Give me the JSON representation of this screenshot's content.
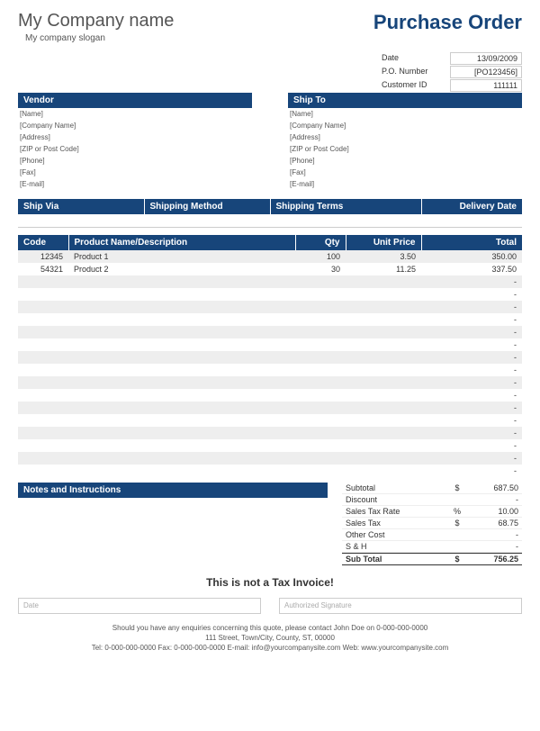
{
  "header": {
    "company": "My Company name",
    "slogan": "My company slogan",
    "title": "Purchase Order"
  },
  "meta": {
    "date_label": "Date",
    "date": "13/09/2009",
    "po_label": "P.O. Number",
    "po": "[PO123456]",
    "cust_label": "Customer ID",
    "cust": "111111"
  },
  "vendor": {
    "title": "Vendor",
    "fields": [
      "[Name]",
      "[Company Name]",
      "[Address]",
      "[ZIP or Post Code]",
      "[Phone]",
      "[Fax]",
      "[E-mail]"
    ]
  },
  "shipto": {
    "title": "Ship To",
    "fields": [
      "[Name]",
      "[Company Name]",
      "[Address]",
      "[ZIP or Post Code]",
      "[Phone]",
      "[Fax]",
      "[E-mail]"
    ]
  },
  "ship_headers": {
    "via": "Ship Via",
    "method": "Shipping Method",
    "terms": "Shipping Terms",
    "delivery": "Delivery Date"
  },
  "cols": {
    "code": "Code",
    "desc": "Product Name/Description",
    "qty": "Qty",
    "price": "Unit Price",
    "total": "Total"
  },
  "rows": [
    {
      "code": "12345",
      "desc": "Product 1",
      "qty": "100",
      "price": "3.50",
      "total": "350.00"
    },
    {
      "code": "54321",
      "desc": "Product 2",
      "qty": "30",
      "price": "11.25",
      "total": "337.50"
    },
    {
      "code": "",
      "desc": "",
      "qty": "",
      "price": "",
      "total": "-"
    },
    {
      "code": "",
      "desc": "",
      "qty": "",
      "price": "",
      "total": "-"
    },
    {
      "code": "",
      "desc": "",
      "qty": "",
      "price": "",
      "total": "-"
    },
    {
      "code": "",
      "desc": "",
      "qty": "",
      "price": "",
      "total": "-"
    },
    {
      "code": "",
      "desc": "",
      "qty": "",
      "price": "",
      "total": "-"
    },
    {
      "code": "",
      "desc": "",
      "qty": "",
      "price": "",
      "total": "-"
    },
    {
      "code": "",
      "desc": "",
      "qty": "",
      "price": "",
      "total": "-"
    },
    {
      "code": "",
      "desc": "",
      "qty": "",
      "price": "",
      "total": "-"
    },
    {
      "code": "",
      "desc": "",
      "qty": "",
      "price": "",
      "total": "-"
    },
    {
      "code": "",
      "desc": "",
      "qty": "",
      "price": "",
      "total": "-"
    },
    {
      "code": "",
      "desc": "",
      "qty": "",
      "price": "",
      "total": "-"
    },
    {
      "code": "",
      "desc": "",
      "qty": "",
      "price": "",
      "total": "-"
    },
    {
      "code": "",
      "desc": "",
      "qty": "",
      "price": "",
      "total": "-"
    },
    {
      "code": "",
      "desc": "",
      "qty": "",
      "price": "",
      "total": "-"
    },
    {
      "code": "",
      "desc": "",
      "qty": "",
      "price": "",
      "total": "-"
    },
    {
      "code": "",
      "desc": "",
      "qty": "",
      "price": "",
      "total": "-"
    }
  ],
  "notes_title": "Notes and Instructions",
  "totals": {
    "subtotal_l": "Subtotal",
    "subtotal_s": "$",
    "subtotal_v": "687.50",
    "discount_l": "Discount",
    "discount_s": "",
    "discount_v": "-",
    "taxrate_l": "Sales Tax Rate",
    "taxrate_s": "%",
    "taxrate_v": "10.00",
    "tax_l": "Sales Tax",
    "tax_s": "$",
    "tax_v": "68.75",
    "other_l": "Other Cost",
    "other_s": "",
    "other_v": "-",
    "sh_l": "S & H",
    "sh_s": "",
    "sh_v": "-",
    "grand_l": "Sub Total",
    "grand_s": "$",
    "grand_v": "756.25"
  },
  "notax": "This is not a Tax Invoice!",
  "sig": {
    "date": "Date",
    "auth": "Authorized Signature"
  },
  "footer": {
    "line1": "Should you have any enquiries concerning this quote, please contact John Doe on 0-000-000-0000",
    "line2": "111 Street, Town/City, County, ST, 00000",
    "line3": "Tel: 0-000-000-0000 Fax: 0-000-000-0000 E-mail: info@yourcompanysite.com Web: www.yourcompanysite.com"
  },
  "colors": {
    "header_bg": "#17457a",
    "alt_row": "#eeeeee"
  }
}
